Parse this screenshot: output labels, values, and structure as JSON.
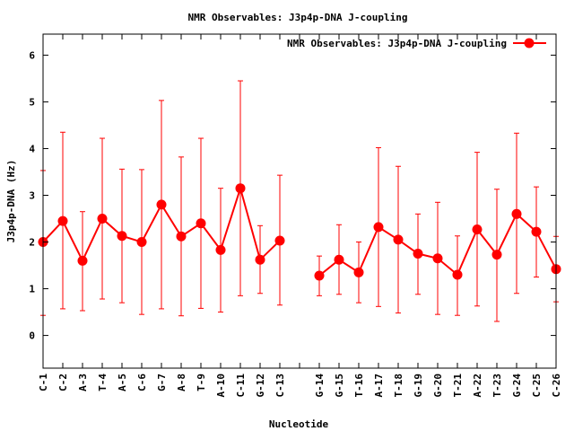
{
  "chart_data": {
    "type": "line",
    "title": "NMR Observables: J3p4p-DNA J-coupling",
    "xlabel": "Nucleotide",
    "ylabel": "J3p4p-DNA (Hz)",
    "ylim": [
      -0.7,
      6.45
    ],
    "yticks": [
      0,
      1,
      2,
      3,
      4,
      5,
      6
    ],
    "legend": {
      "position": "top-right",
      "label": "NMR Observables: J3p4p-DNA J-coupling"
    },
    "colors": {
      "series": "#ff0000",
      "axis": "#000000"
    },
    "categories": [
      "C-1",
      "C-2",
      "A-3",
      "T-4",
      "A-5",
      "C-6",
      "G-7",
      "A-8",
      "T-9",
      "A-10",
      "C-11",
      "G-12",
      "C-13",
      "",
      "G-14",
      "G-15",
      "T-16",
      "A-17",
      "T-18",
      "G-19",
      "G-20",
      "T-21",
      "A-22",
      "T-23",
      "G-24",
      "C-25",
      "C-26"
    ],
    "series": [
      {
        "name": "NMR Observables: J3p4p-DNA J-coupling",
        "values": [
          2.0,
          2.45,
          1.6,
          2.5,
          2.13,
          2.0,
          2.8,
          2.12,
          2.4,
          1.83,
          3.15,
          1.62,
          2.03,
          null,
          1.28,
          1.62,
          1.35,
          2.32,
          2.05,
          1.75,
          1.65,
          1.3,
          2.27,
          1.73,
          2.6,
          2.22,
          1.42
        ],
        "error_low": [
          0.43,
          0.57,
          0.53,
          0.78,
          0.7,
          0.45,
          0.57,
          0.42,
          0.58,
          0.5,
          0.85,
          0.9,
          0.65,
          null,
          0.85,
          0.88,
          0.7,
          0.62,
          0.48,
          0.88,
          0.45,
          0.43,
          0.63,
          0.3,
          0.9,
          1.25,
          0.72
        ],
        "error_high": [
          3.53,
          4.35,
          2.65,
          4.22,
          3.56,
          3.55,
          5.03,
          3.82,
          4.22,
          3.15,
          5.45,
          2.35,
          3.43,
          null,
          1.7,
          2.37,
          2.0,
          4.02,
          3.62,
          2.6,
          2.85,
          2.13,
          3.92,
          3.13,
          4.33,
          3.18,
          2.12
        ]
      }
    ]
  }
}
